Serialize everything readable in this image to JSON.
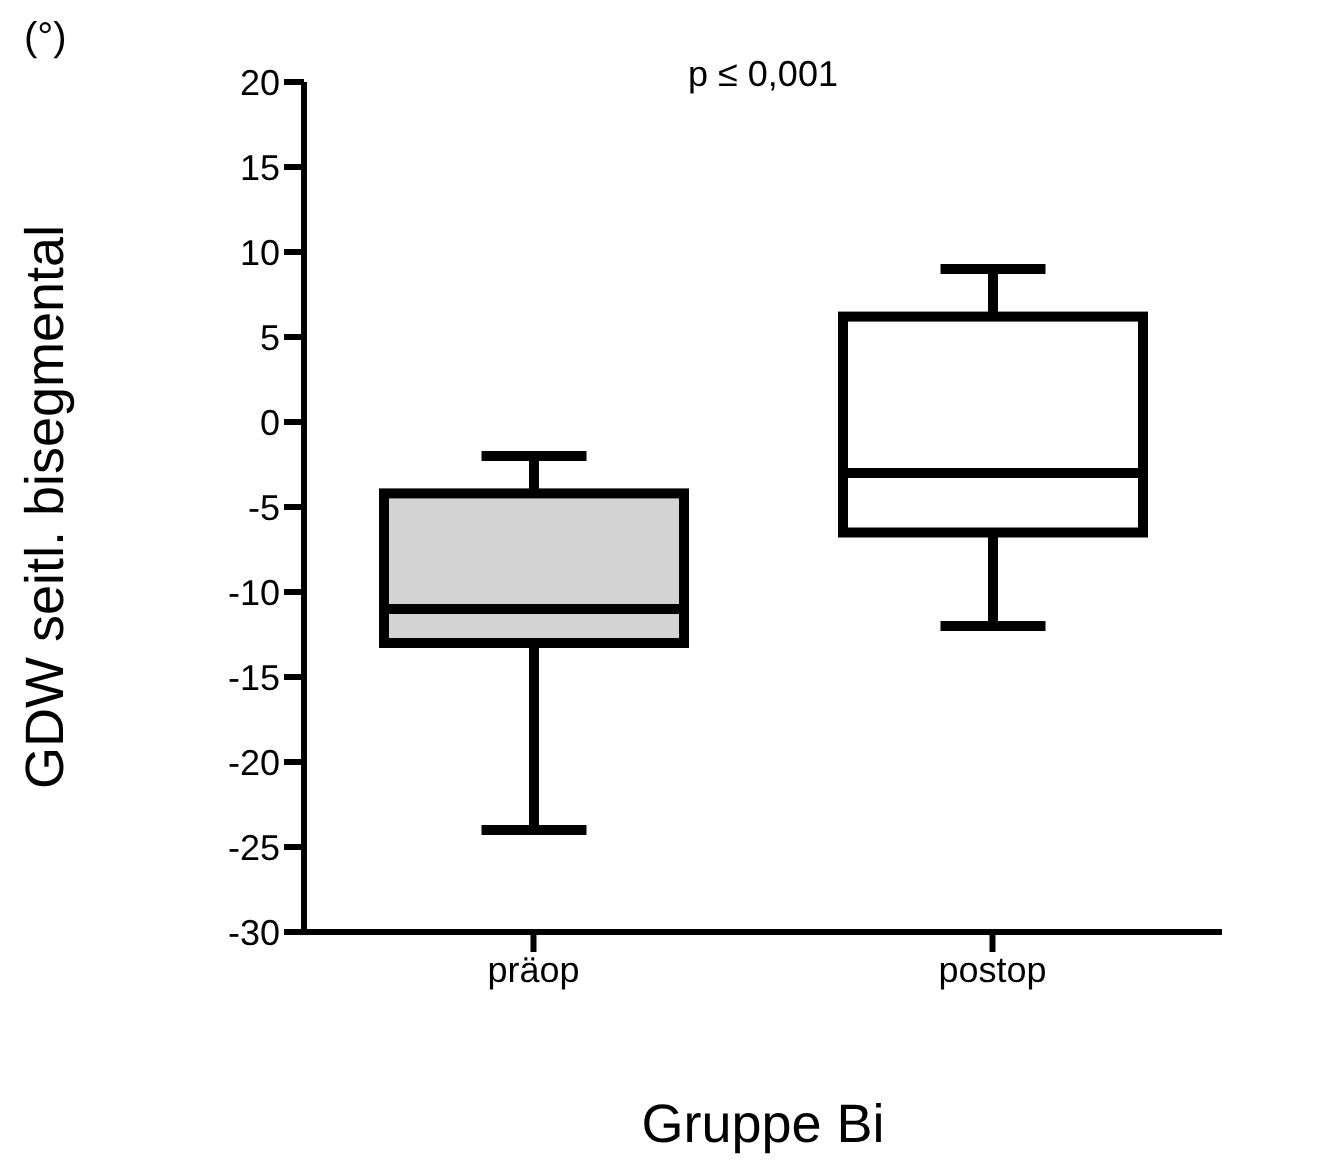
{
  "chart_data": {
    "type": "box",
    "xlabel": "Gruppe Bi",
    "ylabel": "GDW seitl. bisegmental",
    "annotations": [
      "(°)",
      "p ≤ 0,001"
    ],
    "categories": [
      "präop",
      "postop"
    ],
    "colors": [
      "#d3d3d3",
      "#ffffff"
    ],
    "boxes": [
      {
        "low": -24,
        "q1": -13,
        "median": -11,
        "q3": -4.2,
        "high": -2
      },
      {
        "low": -12,
        "q1": -6.5,
        "median": -3,
        "q3": 6.2,
        "high": 9
      }
    ],
    "ylim": [
      -30,
      20
    ],
    "yticks": [
      -30,
      -25,
      -20,
      -15,
      -10,
      -5,
      0,
      5,
      10,
      15,
      20
    ],
    "grid": false
  }
}
